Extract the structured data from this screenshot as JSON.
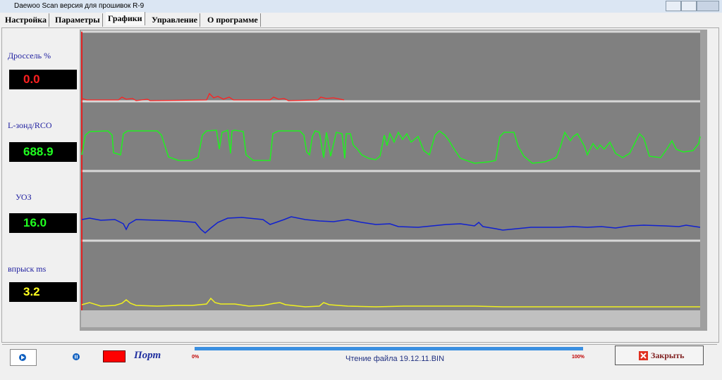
{
  "window": {
    "title": "Daewoo Scan версия для прошивок R-9"
  },
  "tabs": [
    "Настройка",
    "Параметры",
    "Графики",
    "Управление",
    "О программе"
  ],
  "gauges": [
    {
      "label": "Дроссель %",
      "value": "0.0"
    },
    {
      "label": "L-зонд/RCO",
      "value": "688.9"
    },
    {
      "label": "УОЗ",
      "value": "16.0"
    },
    {
      "label": "впрыск  ms",
      "value": "3.2"
    }
  ],
  "status": {
    "port": "Порт",
    "progress_start": "0%",
    "progress_end": "100%",
    "file": "Чтение файла 19.12.11.BIN"
  },
  "close_button": "Закрыть"
}
